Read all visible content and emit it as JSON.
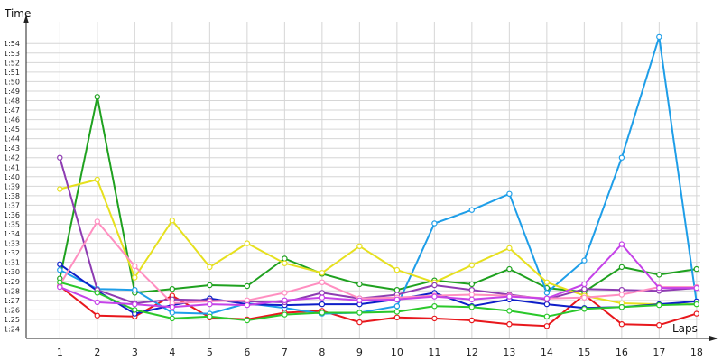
{
  "chart_data": {
    "type": "line",
    "xlabel": "Laps",
    "ylabel": "Time",
    "x": [
      1,
      2,
      3,
      4,
      5,
      6,
      7,
      8,
      9,
      10,
      11,
      12,
      13,
      14,
      15,
      16,
      17,
      18
    ],
    "xlim": [
      0.1,
      18.1
    ],
    "ylim_seconds": [
      83,
      116.3
    ],
    "y_ticks": [
      "1:24",
      "1:25",
      "1:26",
      "1:27",
      "1:28",
      "1:29",
      "1:30",
      "1:31",
      "1:32",
      "1:33",
      "1:34",
      "1:35",
      "1:36",
      "1:37",
      "1:38",
      "1:39",
      "1:40",
      "1:41",
      "1:42",
      "1:43",
      "1:44",
      "1:45",
      "1:46",
      "1:47",
      "1:48",
      "1:49",
      "1:50",
      "1:51",
      "1:52",
      "1:53",
      "1:54"
    ],
    "grid": true,
    "series": [
      {
        "color": "#e8171c",
        "values": [
          "1:28.5",
          "1:25.4",
          "1:25.3",
          "1:27.5",
          "1:25.2",
          "1:25.0",
          "1:25.7",
          "1:25.9",
          "1:24.7",
          "1:25.2",
          "1:25.1",
          "1:24.9",
          "1:24.5",
          "1:24.3",
          "1:27.6",
          "1:24.5",
          "1:24.4",
          "1:25.6"
        ]
      },
      {
        "color": "#1fa11f",
        "values": [
          "1:29.3",
          "1:48.4",
          "1:27.8",
          "1:28.2",
          "1:28.6",
          "1:28.5",
          "1:31.4",
          "1:29.8",
          "1:28.7",
          "1:28.1",
          "1:29.1",
          "1:28.7",
          "1:30.3",
          "1:28.3",
          "1:27.9",
          "1:30.5",
          "1:29.7",
          "1:30.3"
        ]
      },
      {
        "color": "#1e9ee8",
        "values": [
          "1:30.2",
          "1:28.2",
          "1:28.1",
          "1:25.7",
          "1:25.6",
          "1:26.7",
          "1:26.2",
          "1:25.6",
          "1:25.7",
          "1:26.4",
          "1:35.1",
          "1:36.5",
          "1:38.2",
          "1:27.8",
          "1:31.2",
          "1:42.0",
          "1:54.7",
          "1:26.8"
        ]
      },
      {
        "color": "#e6e01e",
        "values": [
          "1:38.7",
          "1:39.7",
          "1:29.4",
          "1:35.4",
          "1:30.5",
          "1:33.0",
          "1:30.9",
          "1:29.9",
          "1:32.7",
          "1:30.2",
          "1:28.9",
          "1:30.7",
          "1:32.5",
          "1:28.9",
          "1:27.5",
          "1:26.7",
          "1:26.6",
          "1:26.6"
        ]
      },
      {
        "color": "#0d1ec8",
        "values": [
          "1:30.8",
          "1:28.0",
          "1:25.6",
          "1:26.5",
          "1:27.2",
          "1:26.6",
          "1:26.5",
          "1:26.6",
          "1:26.6",
          "1:27.1",
          "1:27.8",
          "1:26.4",
          "1:27.1",
          "1:26.6",
          "1:26.2",
          "1:26.3",
          "1:26.6",
          "1:26.9"
        ]
      },
      {
        "color": "#8e3cb2",
        "values": [
          "1:42.0",
          "1:28.1",
          "1:26.7",
          "1:27.1",
          "1:27.0",
          "1:26.9",
          "1:26.8",
          "1:27.8",
          "1:27.2",
          "1:27.6",
          "1:28.6",
          "1:28.1",
          "1:27.6",
          "1:27.1",
          "1:28.2",
          "1:28.1",
          "1:28.0",
          "1:28.3"
        ]
      },
      {
        "color": "#ff8ec0",
        "values": [
          "1:28.6",
          "1:35.3",
          "1:30.6",
          "1:26.7",
          "1:26.9",
          "1:27.0",
          "1:27.8",
          "1:28.9",
          "1:27.2",
          "1:27.3",
          "1:27.5",
          "1:27.6",
          "1:27.5",
          "1:27.2",
          "1:27.3",
          "1:27.6",
          "1:28.4",
          "1:28.4"
        ]
      },
      {
        "color": "#2ac82a",
        "values": [
          "1:28.9",
          "1:27.8",
          "1:26.0",
          "1:25.1",
          "1:25.3",
          "1:24.9",
          "1:25.5",
          "1:25.7",
          "1:25.7",
          "1:25.8",
          "1:26.4",
          "1:26.3",
          "1:25.9",
          "1:25.3",
          "1:26.1",
          "1:26.3",
          "1:26.5",
          "1:26.6"
        ]
      },
      {
        "color": "#c542e8",
        "values": [
          "1:28.4",
          "1:26.8",
          "1:26.6",
          "1:26.3",
          "1:26.6",
          "1:26.5",
          "1:27.0",
          "1:27.3",
          "1:27.0",
          "1:27.1",
          "1:27.4",
          "1:27.1",
          "1:27.4",
          "1:27.2",
          "1:28.7",
          "1:32.9",
          "1:28.3",
          "1:28.3"
        ]
      }
    ]
  }
}
